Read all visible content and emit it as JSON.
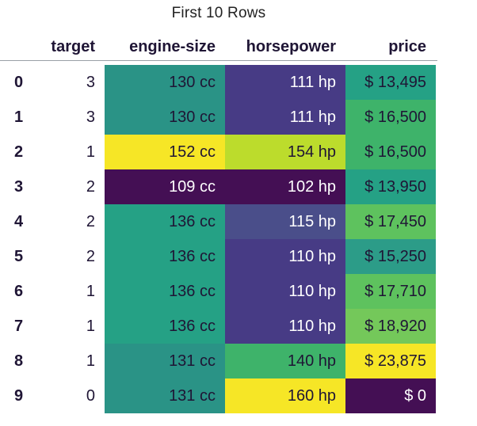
{
  "caption": "First 10 Rows",
  "headers": {
    "index": "",
    "target": "target",
    "engine_size": "engine-size",
    "horsepower": "horsepower",
    "price": "price"
  },
  "colors": {
    "dark_purple": "#440f54",
    "indigo": "#473b85",
    "slate_blue": "#4a4e8a",
    "teal": "#2a9386",
    "teal_green": "#25a185",
    "green": "#3eb36a",
    "lime_green": "#5ec25e",
    "yellow_green": "#bcdc2c",
    "yellow": "#f6e626"
  },
  "rows": [
    {
      "index": "0",
      "target": "3",
      "engine_size": "130 cc",
      "horsepower": "111 hp",
      "price": "$ 13,495",
      "engine_color": "#2a9386",
      "hp_color": "#473b85",
      "price_color": "#25a185"
    },
    {
      "index": "1",
      "target": "3",
      "engine_size": "130 cc",
      "horsepower": "111 hp",
      "price": "$ 16,500",
      "engine_color": "#2a9386",
      "hp_color": "#473b85",
      "price_color": "#3eb36a"
    },
    {
      "index": "2",
      "target": "1",
      "engine_size": "152 cc",
      "horsepower": "154 hp",
      "price": "$ 16,500",
      "engine_color": "#f6e626",
      "hp_color": "#bcdc2c",
      "price_color": "#3eb36a"
    },
    {
      "index": "3",
      "target": "2",
      "engine_size": "109 cc",
      "horsepower": "102 hp",
      "price": "$ 13,950",
      "engine_color": "#440f54",
      "hp_color": "#440f54",
      "price_color": "#25a185"
    },
    {
      "index": "4",
      "target": "2",
      "engine_size": "136 cc",
      "horsepower": "115 hp",
      "price": "$ 17,450",
      "engine_color": "#25a185",
      "hp_color": "#4a4e8a",
      "price_color": "#5ec25e"
    },
    {
      "index": "5",
      "target": "2",
      "engine_size": "136 cc",
      "horsepower": "110 hp",
      "price": "$ 15,250",
      "engine_color": "#25a185",
      "hp_color": "#473b85",
      "price_color": "#2c9c88"
    },
    {
      "index": "6",
      "target": "1",
      "engine_size": "136 cc",
      "horsepower": "110 hp",
      "price": "$ 17,710",
      "engine_color": "#25a185",
      "hp_color": "#473b85",
      "price_color": "#5ec25e"
    },
    {
      "index": "7",
      "target": "1",
      "engine_size": "136 cc",
      "horsepower": "110 hp",
      "price": "$ 18,920",
      "engine_color": "#25a185",
      "hp_color": "#473b85",
      "price_color": "#74c85a"
    },
    {
      "index": "8",
      "target": "1",
      "engine_size": "131 cc",
      "horsepower": "140 hp",
      "price": "$ 23,875",
      "engine_color": "#2a9386",
      "hp_color": "#3eb36a",
      "price_color": "#f6e626"
    },
    {
      "index": "9",
      "target": "0",
      "engine_size": "131 cc",
      "horsepower": "160 hp",
      "price": "$ 0",
      "engine_color": "#2a9386",
      "hp_color": "#f6e626",
      "price_color": "#440f54"
    }
  ]
}
